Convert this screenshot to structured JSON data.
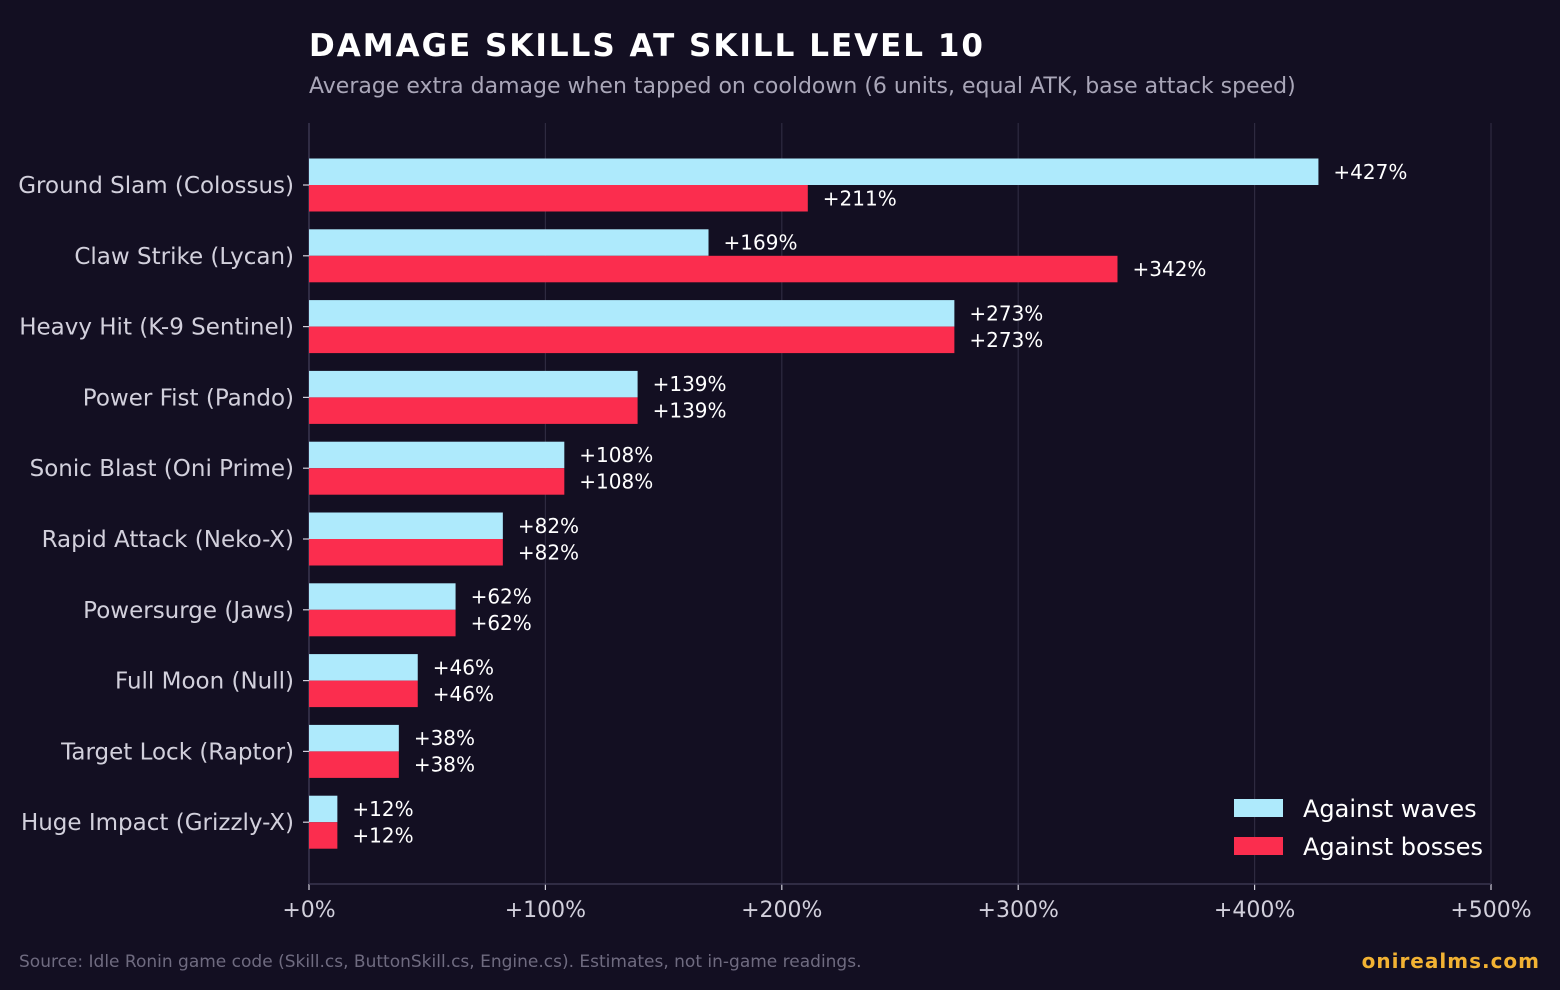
{
  "header": {
    "title": "DAMAGE SKILLS AT SKILL LEVEL 10",
    "subtitle": "Average extra damage when tapped on cooldown (6 units, equal ATK, base attack speed)"
  },
  "footer": {
    "source": "Source: Idle Ronin game code (Skill.cs, ButtonSkill.cs, Engine.cs). Estimates, not in-game readings.",
    "brand": "onirealms.com",
    "brand_color": "#f2b233"
  },
  "colors": {
    "background": "#130f22",
    "waves": "#aeeafc",
    "bosses": "#fb2d4e",
    "grid": "#2e2a40",
    "text": "#ffffff",
    "label": "#d2d0dc"
  },
  "chart_data": {
    "type": "bar",
    "orientation": "horizontal",
    "categories": [
      "Ground Slam (Colossus)",
      "Claw Strike (Lycan)",
      "Heavy Hit (K-9 Sentinel)",
      "Power Fist (Pando)",
      "Sonic Blast (Oni Prime)",
      "Rapid Attack (Neko-X)",
      "Powersurge (Jaws)",
      "Full Moon (Null)",
      "Target Lock (Raptor)",
      "Huge Impact (Grizzly-X)"
    ],
    "series": [
      {
        "name": "Against waves",
        "color": "#aeeafc",
        "values": [
          427,
          169,
          273,
          139,
          108,
          82,
          62,
          46,
          38,
          12
        ],
        "labels": [
          "+427%",
          "+169%",
          "+273%",
          "+139%",
          "+108%",
          "+82%",
          "+62%",
          "+46%",
          "+38%",
          "+12%"
        ]
      },
      {
        "name": "Against bosses",
        "color": "#fb2d4e",
        "values": [
          211,
          342,
          273,
          139,
          108,
          82,
          62,
          46,
          38,
          12
        ],
        "labels": [
          "+211%",
          "+342%",
          "+273%",
          "+139%",
          "+108%",
          "+82%",
          "+62%",
          "+46%",
          "+38%",
          "+12%"
        ]
      }
    ],
    "xlim": [
      0,
      500
    ],
    "xticks": [
      0,
      100,
      200,
      300,
      400,
      500
    ],
    "xtick_labels": [
      "+0%",
      "+100%",
      "+200%",
      "+300%",
      "+400%",
      "+500%"
    ],
    "grid": "vertical",
    "legend": "bottom-right"
  }
}
